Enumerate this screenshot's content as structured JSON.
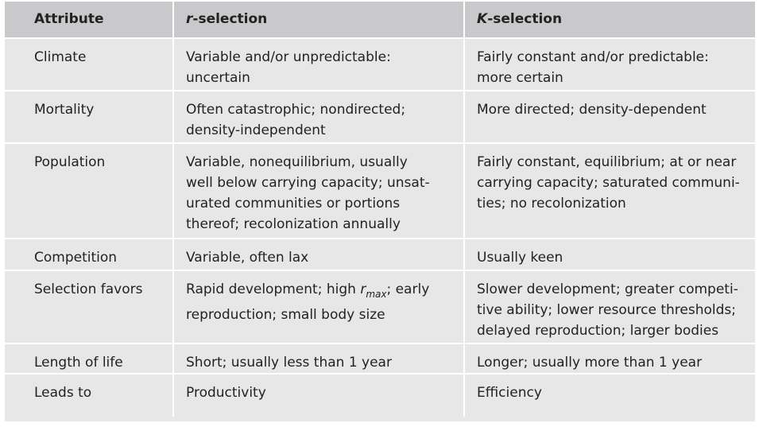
{
  "header": {
    "attribute": "Attribute",
    "r_prefix": "r",
    "r_suffix": "-selection",
    "k_prefix": "K",
    "k_suffix": "-selection"
  },
  "rows": [
    {
      "attribute": "Climate",
      "r": "Variable and/or unpredictable:\nuncertain",
      "k": "Fairly constant and/or predictable:\nmore certain"
    },
    {
      "attribute": "Mortality",
      "r": "Often catastrophic; nondirected;\ndensity-independent",
      "k": "More directed; density-dependent"
    },
    {
      "attribute": "Population",
      "r": "Variable, nonequilibrium, usually\nwell below carrying capacity; unsat-\nurated communities or portions\nthereof; recolonization annually",
      "k": "Fairly constant, equilibrium; at or near\ncarrying capacity; saturated communi-\nties; no recolonization"
    },
    {
      "attribute": "Competition",
      "r": "Variable, often lax",
      "k": "Usually keen"
    },
    {
      "attribute": "Selection favors",
      "r_pre": "Rapid development; high ",
      "r_var": "r",
      "r_sub": "max",
      "r_post": "; early\nreproduction; small body size",
      "k": "Slower development; greater competi-\ntive ability; lower resource thresholds;\ndelayed reproduction; larger bodies"
    },
    {
      "attribute": "Length of life",
      "r": "Short; usually less than 1 year",
      "k": "Longer; usually more than 1 year"
    },
    {
      "attribute": "Leads to",
      "r": "Productivity",
      "k": "Efficiency"
    }
  ]
}
